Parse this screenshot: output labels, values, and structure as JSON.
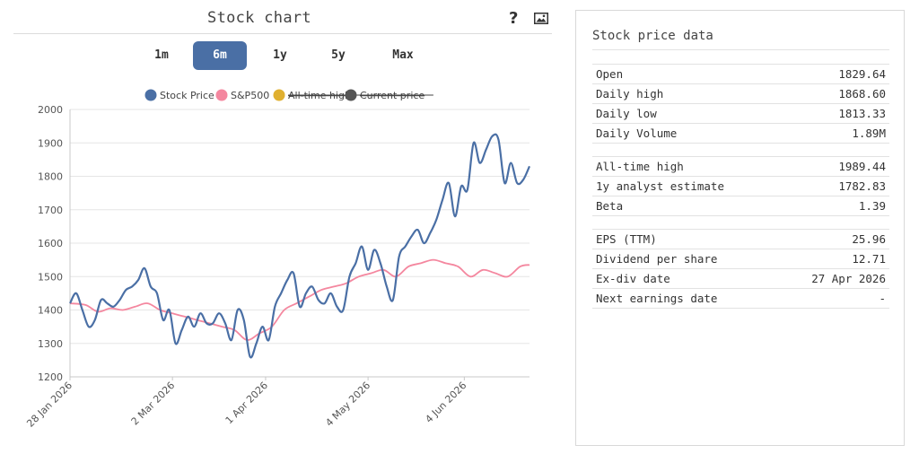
{
  "chart_panel": {
    "title": "Stock chart",
    "help_symbol": "?",
    "range_tabs": [
      "1m",
      "6m",
      "1y",
      "5y",
      "Max"
    ],
    "active_tab": "6m"
  },
  "chart_data": {
    "type": "line",
    "title": "Stock chart",
    "x_start": "2026-01-28",
    "x_end": "2026-06-25",
    "xticks": [
      "28 Jan 2026",
      "2 Mar 2026",
      "1 Apr 2026",
      "4 May 2026",
      "4 Jun 2026"
    ],
    "xtick_dates": [
      "2026-01-28",
      "2026-03-02",
      "2026-04-01",
      "2026-05-04",
      "2026-06-04"
    ],
    "ylim": [
      1200,
      2000
    ],
    "yticks": [
      1200,
      1300,
      1400,
      1500,
      1600,
      1700,
      1800,
      1900,
      2000
    ],
    "grid": true,
    "legend_position": "top",
    "series": [
      {
        "name": "Stock Price",
        "color": "#4a6fa5",
        "legend_struck": false,
        "x": [
          "2026-01-28",
          "2026-01-30",
          "2026-02-01",
          "2026-02-03",
          "2026-02-05",
          "2026-02-07",
          "2026-02-09",
          "2026-02-11",
          "2026-02-13",
          "2026-02-15",
          "2026-02-17",
          "2026-02-19",
          "2026-02-21",
          "2026-02-23",
          "2026-02-25",
          "2026-02-27",
          "2026-03-01",
          "2026-03-03",
          "2026-03-05",
          "2026-03-07",
          "2026-03-09",
          "2026-03-11",
          "2026-03-13",
          "2026-03-15",
          "2026-03-17",
          "2026-03-19",
          "2026-03-21",
          "2026-03-23",
          "2026-03-25",
          "2026-03-27",
          "2026-03-29",
          "2026-03-31",
          "2026-04-02",
          "2026-04-04",
          "2026-04-06",
          "2026-04-08",
          "2026-04-10",
          "2026-04-12",
          "2026-04-14",
          "2026-04-16",
          "2026-04-18",
          "2026-04-20",
          "2026-04-22",
          "2026-04-24",
          "2026-04-26",
          "2026-04-28",
          "2026-04-30",
          "2026-05-02",
          "2026-05-04",
          "2026-05-06",
          "2026-05-08",
          "2026-05-10",
          "2026-05-12",
          "2026-05-14",
          "2026-05-16",
          "2026-05-18",
          "2026-05-20",
          "2026-05-22",
          "2026-05-24",
          "2026-05-26",
          "2026-05-28",
          "2026-05-30",
          "2026-06-01",
          "2026-06-03",
          "2026-06-05",
          "2026-06-07",
          "2026-06-09",
          "2026-06-11",
          "2026-06-13",
          "2026-06-15",
          "2026-06-17",
          "2026-06-19",
          "2026-06-21",
          "2026-06-23",
          "2026-06-25"
        ],
        "values": [
          1420,
          1450,
          1400,
          1350,
          1370,
          1430,
          1420,
          1410,
          1430,
          1460,
          1470,
          1490,
          1525,
          1470,
          1450,
          1370,
          1400,
          1300,
          1340,
          1380,
          1350,
          1390,
          1360,
          1360,
          1390,
          1360,
          1310,
          1400,
          1370,
          1260,
          1300,
          1350,
          1310,
          1410,
          1450,
          1490,
          1510,
          1410,
          1450,
          1470,
          1430,
          1420,
          1450,
          1410,
          1400,
          1500,
          1540,
          1590,
          1520,
          1580,
          1540,
          1470,
          1430,
          1560,
          1590,
          1620,
          1640,
          1600,
          1630,
          1670,
          1730,
          1780,
          1680,
          1770,
          1760,
          1900,
          1840,
          1880,
          1920,
          1910,
          1780,
          1840,
          1780,
          1790,
          1830
        ]
      },
      {
        "name": "S&P500",
        "color": "#f4879f",
        "legend_struck": false,
        "x": [
          "2026-01-28",
          "2026-02-02",
          "2026-02-06",
          "2026-02-10",
          "2026-02-14",
          "2026-02-18",
          "2026-02-22",
          "2026-02-26",
          "2026-03-02",
          "2026-03-06",
          "2026-03-10",
          "2026-03-14",
          "2026-03-18",
          "2026-03-22",
          "2026-03-26",
          "2026-03-30",
          "2026-04-03",
          "2026-04-07",
          "2026-04-11",
          "2026-04-15",
          "2026-04-19",
          "2026-04-23",
          "2026-04-27",
          "2026-05-01",
          "2026-05-05",
          "2026-05-09",
          "2026-05-13",
          "2026-05-17",
          "2026-05-21",
          "2026-05-25",
          "2026-05-29",
          "2026-06-02",
          "2026-06-06",
          "2026-06-10",
          "2026-06-14",
          "2026-06-18",
          "2026-06-22",
          "2026-06-25"
        ],
        "values": [
          1420,
          1415,
          1395,
          1405,
          1400,
          1410,
          1420,
          1400,
          1390,
          1380,
          1370,
          1360,
          1350,
          1340,
          1310,
          1330,
          1350,
          1400,
          1420,
          1440,
          1460,
          1470,
          1480,
          1500,
          1510,
          1520,
          1500,
          1530,
          1540,
          1550,
          1540,
          1530,
          1500,
          1520,
          1510,
          1500,
          1530,
          1535
        ]
      },
      {
        "name": "All-time high",
        "color": "#e0b030",
        "legend_struck": true
      },
      {
        "name": "Current price",
        "color": "#555555",
        "legend_struck": true
      }
    ]
  },
  "data_panel": {
    "title": "Stock price data",
    "groups": [
      [
        {
          "label": "Open",
          "value": "1829.64"
        },
        {
          "label": "Daily high",
          "value": "1868.60"
        },
        {
          "label": "Daily low",
          "value": "1813.33"
        },
        {
          "label": "Daily Volume",
          "value": "1.89M"
        }
      ],
      [
        {
          "label": "All-time high",
          "value": "1989.44"
        },
        {
          "label": "1y analyst estimate",
          "value": "1782.83"
        },
        {
          "label": "Beta",
          "value": "1.39"
        }
      ],
      [
        {
          "label": "EPS (TTM)",
          "value": "25.96"
        },
        {
          "label": "Dividend per share",
          "value": "12.71"
        },
        {
          "label": "Ex-div date",
          "value": "27 Apr 2026"
        },
        {
          "label": "Next earnings date",
          "value": "-"
        }
      ]
    ]
  }
}
